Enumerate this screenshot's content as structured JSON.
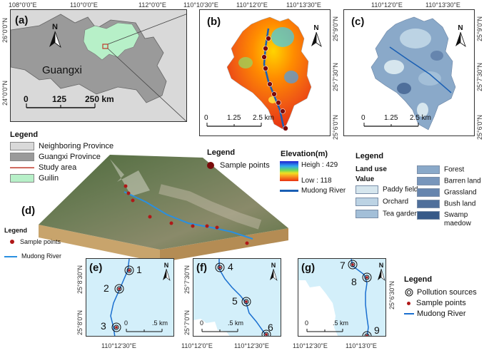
{
  "panel_a": {
    "label": "(a)",
    "region_name": "Guangxi",
    "top_coords": [
      "108°0'0\"E",
      "110°0'0\"E",
      "112°0'0\"E"
    ],
    "left_coords": [
      "26°0'0\"N",
      "24°0'0\"N"
    ],
    "scale": {
      "t0": "0",
      "t1": "125",
      "t2": "250 km"
    }
  },
  "panel_b": {
    "label": "(b)",
    "top_coords": [
      "110°10'30\"E",
      "110°12'0\"E",
      "110°13'30\"E"
    ],
    "right_coords": [
      "25°9'0\"N",
      "25°7'30\"N",
      "25°6'0\"N"
    ],
    "scale": {
      "t0": "0",
      "t1": "1.25",
      "t2": "2.5 km"
    }
  },
  "panel_c": {
    "label": "(c)",
    "top_coords": [
      "110°12'0\"E",
      "110°13'30\"E"
    ],
    "right_coords": [
      "25°9'0\"N",
      "25°7'30\"N",
      "25°6'0\"N"
    ],
    "scale": {
      "t0": "0",
      "t1": "1.25",
      "t2": "2.5 km"
    }
  },
  "north": "N",
  "legend_a": {
    "title": "Legend",
    "items": [
      {
        "label": "Neighboring Province",
        "color": "#d9d9d9"
      },
      {
        "label": "Guangxi Province",
        "color": "#9a9a9a"
      },
      {
        "label": "Study area",
        "color": "#c0392b"
      },
      {
        "label": "Guilin",
        "color": "#b7f0c8"
      }
    ]
  },
  "legend_b": {
    "title": "Legend",
    "sample_points": "Sample points",
    "elevation_title": "Elevation(m)",
    "high": "Heigh : 429",
    "low": "Low : 118",
    "river": "Mudong River"
  },
  "legend_c": {
    "title": "Legend",
    "subtitle": "Land use",
    "value_label": "Value",
    "col1": [
      {
        "label": "Paddy field",
        "color": "#d6e6ee"
      },
      {
        "label": "Orchard",
        "color": "#bcd3e4"
      },
      {
        "label": "Tea garden",
        "color": "#a3bfd8"
      }
    ],
    "col2": [
      {
        "label": "Forest",
        "color": "#8aa9c9"
      },
      {
        "label": "Barren land",
        "color": "#7896bb"
      },
      {
        "label": "Grassland",
        "color": "#6685ae"
      },
      {
        "label": "Bush land",
        "color": "#4f6f9b"
      },
      {
        "label": "Swamp maedow",
        "color": "#375a88"
      }
    ]
  },
  "panel_d": {
    "label": "(d)",
    "legend_title": "Legend",
    "sample_points": "Sample points",
    "river": "Mudong River"
  },
  "panel_e": {
    "label": "(e)",
    "left_coords": [
      "25°8'30\"N",
      "25°8'0\"N"
    ],
    "bottom_coord": "110°12'30\"E",
    "points": [
      "1",
      "2",
      "3"
    ],
    "scale": {
      "t0": "0",
      "t1": ".5 km"
    }
  },
  "panel_f": {
    "label": "(f)",
    "left_coords": [
      "25°7'30\"N",
      "25°7'0\"N"
    ],
    "bottom_coords": [
      "110°12'0\"E",
      "110°12'30\"E"
    ],
    "points": [
      "4",
      "5",
      "6"
    ],
    "scale": {
      "t0": "0",
      "t1": ".5 km"
    }
  },
  "panel_g": {
    "label": "(g)",
    "right_coords": [
      "25°6'30\"N"
    ],
    "bottom_coords": [
      "110°12'30\"E",
      "110°13'0\"E"
    ],
    "points": [
      "7",
      "8",
      "9"
    ],
    "scale": {
      "t0": "0",
      "t1": ".5 km"
    }
  },
  "legend_efg": {
    "title": "Legend",
    "items": [
      "Pollution sources",
      "Sample points",
      "Mudong River"
    ]
  }
}
